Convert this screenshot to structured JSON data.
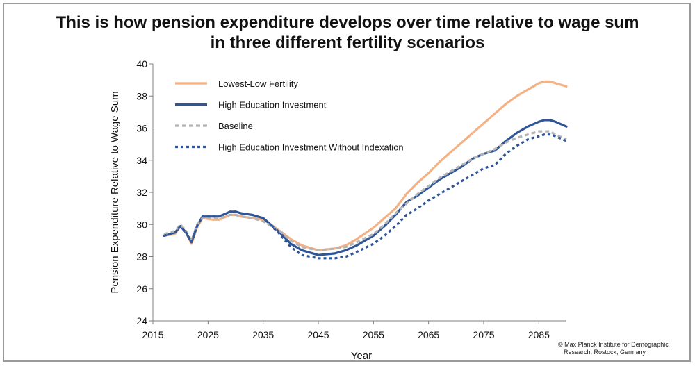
{
  "title_line1": "This is how pension expenditure develops over time relative to wage sum",
  "title_line2": "in three different fertility scenarios",
  "credit_line1": "© Max Planck Institute for Demographic",
  "credit_line2": "Research, Rostock, Germany",
  "chart_data": {
    "type": "line",
    "title": "This is how pension expenditure develops over time relative to wage sum in three different fertility scenarios",
    "xlabel": "Year",
    "ylabel": "Pension Expenditure Relative to Wage Sum",
    "xlim": [
      2015,
      2090
    ],
    "ylim": [
      24,
      40
    ],
    "xticks": [
      2015,
      2025,
      2035,
      2045,
      2055,
      2065,
      2075,
      2085
    ],
    "yticks": [
      24,
      26,
      28,
      30,
      32,
      34,
      36,
      38,
      40
    ],
    "grid": false,
    "legend_position": "top-left",
    "x": [
      2017,
      2019,
      2020,
      2021,
      2022,
      2023,
      2024,
      2026,
      2027,
      2029,
      2030,
      2031,
      2033,
      2035,
      2036,
      2038,
      2040,
      2042,
      2045,
      2048,
      2050,
      2052,
      2055,
      2057,
      2059,
      2061,
      2063,
      2065,
      2067,
      2069,
      2071,
      2073,
      2075,
      2077,
      2079,
      2081,
      2083,
      2085,
      2086,
      2087,
      2088,
      2090
    ],
    "series": [
      {
        "name": "Lowest-Low Fertility",
        "color": "#f4b183",
        "dash": "solid",
        "values": [
          29.3,
          29.4,
          29.9,
          29.5,
          28.8,
          29.8,
          30.4,
          30.3,
          30.3,
          30.6,
          30.6,
          30.5,
          30.4,
          30.3,
          30.1,
          29.6,
          29.1,
          28.7,
          28.4,
          28.5,
          28.7,
          29.1,
          29.8,
          30.4,
          31.0,
          31.9,
          32.6,
          33.2,
          33.9,
          34.5,
          35.1,
          35.7,
          36.3,
          36.9,
          37.5,
          38.0,
          38.4,
          38.8,
          38.9,
          38.9,
          38.8,
          38.6
        ]
      },
      {
        "name": "High Education Investment",
        "color": "#2f5597",
        "dash": "solid",
        "values": [
          29.3,
          29.5,
          29.9,
          29.5,
          28.9,
          29.9,
          30.5,
          30.5,
          30.5,
          30.8,
          30.8,
          30.7,
          30.6,
          30.4,
          30.1,
          29.5,
          28.8,
          28.4,
          28.1,
          28.2,
          28.4,
          28.7,
          29.3,
          29.9,
          30.6,
          31.4,
          31.8,
          32.3,
          32.8,
          33.2,
          33.6,
          34.1,
          34.4,
          34.6,
          35.2,
          35.7,
          36.1,
          36.4,
          36.5,
          36.5,
          36.4,
          36.1
        ]
      },
      {
        "name": "Baseline",
        "color": "#b4b4b4",
        "dash": "dashed",
        "values": [
          29.4,
          29.6,
          30.0,
          29.6,
          29.0,
          30.0,
          30.4,
          30.4,
          30.4,
          30.6,
          30.6,
          30.5,
          30.4,
          30.2,
          30.0,
          29.6,
          29.0,
          28.6,
          28.4,
          28.5,
          28.6,
          28.9,
          29.4,
          30.0,
          30.7,
          31.3,
          31.9,
          32.4,
          32.9,
          33.3,
          33.7,
          34.1,
          34.4,
          34.7,
          35.1,
          35.4,
          35.6,
          35.8,
          35.8,
          35.8,
          35.6,
          35.3
        ]
      },
      {
        "name": "High Education Investment Without Indexation",
        "color": "#2f5597",
        "dash": "dotted",
        "values": [
          29.3,
          29.5,
          29.9,
          29.5,
          28.9,
          29.9,
          30.5,
          30.5,
          30.5,
          30.8,
          30.8,
          30.7,
          30.6,
          30.4,
          30.1,
          29.4,
          28.6,
          28.1,
          27.9,
          27.9,
          28.0,
          28.3,
          28.8,
          29.3,
          29.9,
          30.6,
          31.0,
          31.5,
          31.9,
          32.3,
          32.7,
          33.1,
          33.5,
          33.7,
          34.4,
          34.9,
          35.3,
          35.5,
          35.6,
          35.6,
          35.5,
          35.2
        ]
      }
    ]
  }
}
